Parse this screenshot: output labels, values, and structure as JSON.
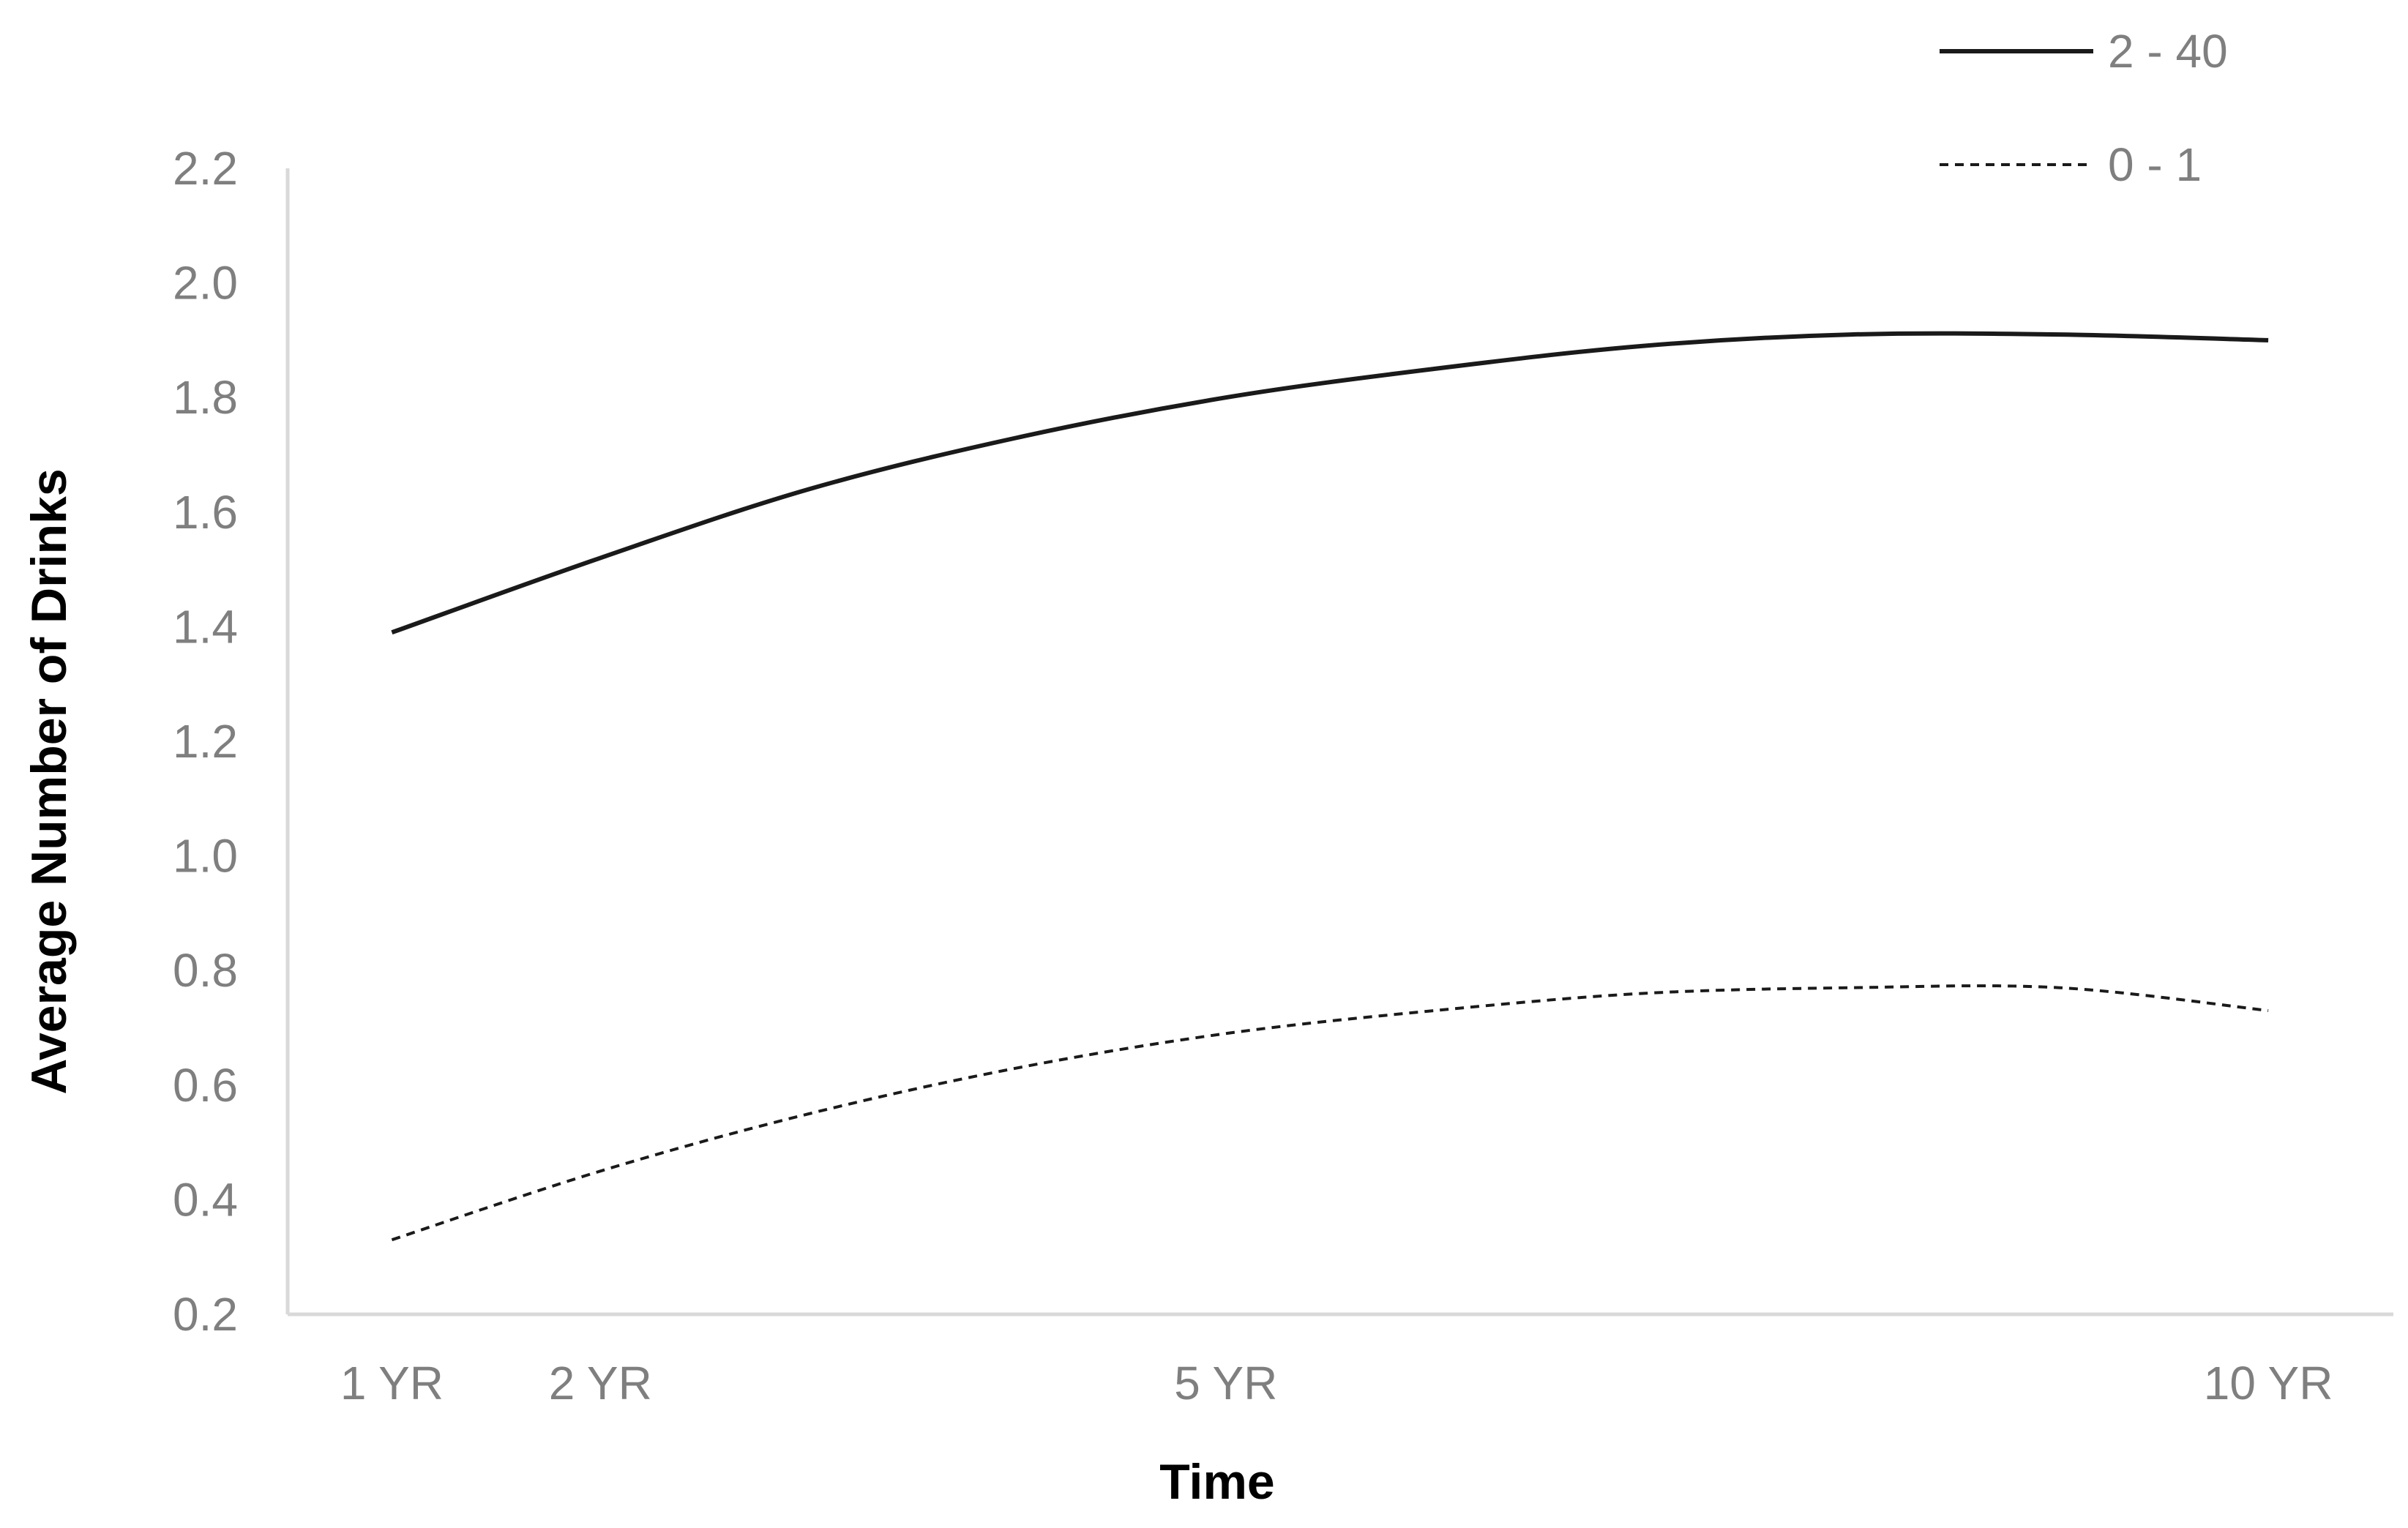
{
  "chart_data": {
    "type": "line",
    "title": "",
    "xlabel": "Time",
    "ylabel": "Average Number of Drinks",
    "ylim": [
      0.2,
      2.2
    ],
    "xlim": [
      0.5,
      10.6
    ],
    "y_ticks": [
      "0.2",
      "0.4",
      "0.6",
      "0.8",
      "1.0",
      "1.2",
      "1.4",
      "1.6",
      "1.8",
      "2.0",
      "2.2"
    ],
    "x_ticks": [
      {
        "x": 1,
        "label": "1 YR"
      },
      {
        "x": 2,
        "label": "2 YR"
      },
      {
        "x": 5,
        "label": "5 YR"
      },
      {
        "x": 10,
        "label": "10 YR"
      }
    ],
    "grid": false,
    "legend_position": "top-right",
    "series": [
      {
        "name": "2 - 40",
        "style": "solid",
        "color": "#1a1a1a",
        "x": [
          1,
          2,
          3,
          4,
          5,
          6,
          7,
          8,
          9,
          10
        ],
        "y": [
          1.39,
          1.52,
          1.64,
          1.73,
          1.8,
          1.85,
          1.89,
          1.91,
          1.91,
          1.9
        ]
      },
      {
        "name": "0 - 1",
        "style": "dashed",
        "color": "#1a1a1a",
        "x": [
          1,
          2,
          3,
          4,
          5,
          6,
          7,
          8,
          9,
          10
        ],
        "y": [
          0.33,
          0.45,
          0.55,
          0.63,
          0.69,
          0.73,
          0.76,
          0.77,
          0.77,
          0.73
        ]
      }
    ]
  }
}
